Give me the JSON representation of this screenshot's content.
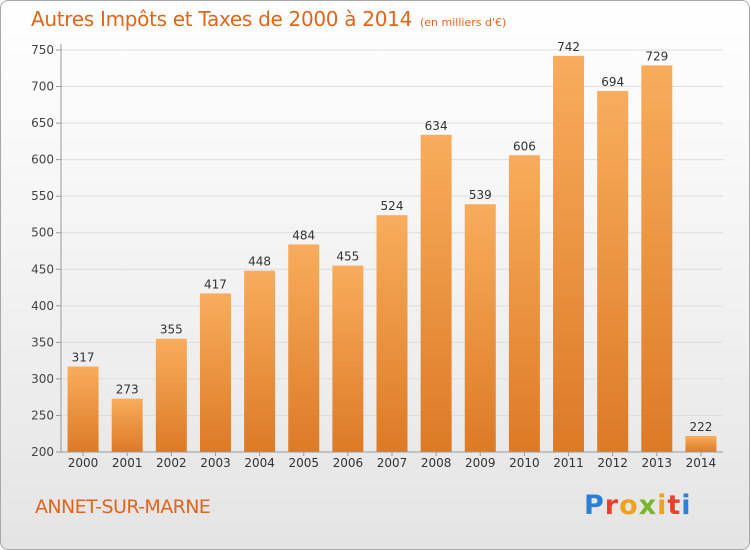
{
  "header": {
    "title": "Autres Impôts et Taxes de 2000 à 2014",
    "unit": "(en milliers d'€)"
  },
  "footer": {
    "commune": "ANNET-SUR-MARNE",
    "brand_letters": [
      "P",
      "r",
      "o",
      "x",
      "i",
      "t",
      "i"
    ],
    "brand_colors": [
      "#2b7fd4",
      "#e8422e",
      "#f0a11e",
      "#7bb52c",
      "#f0a11e",
      "#e8422e",
      "#2b7fd4"
    ]
  },
  "colors": {
    "bar_light": "#f8ad5c",
    "bar_dark": "#dd7a26",
    "grid": "#dddddd",
    "axis": "#999999",
    "accent": "#e0651b"
  },
  "chart_data": {
    "type": "bar",
    "title": "Autres Impôts et Taxes de 2000 à 2014",
    "unit": "(en milliers d'€)",
    "categories": [
      "2000",
      "2001",
      "2002",
      "2003",
      "2004",
      "2005",
      "2006",
      "2007",
      "2008",
      "2009",
      "2010",
      "2011",
      "2012",
      "2013",
      "2014"
    ],
    "values": [
      317,
      273,
      355,
      417,
      448,
      484,
      455,
      524,
      634,
      539,
      606,
      742,
      694,
      729,
      222
    ],
    "ylim": [
      200,
      750
    ],
    "yticks": [
      200,
      250,
      300,
      350,
      400,
      450,
      500,
      550,
      600,
      650,
      700,
      750
    ],
    "grid": true,
    "legend": "none"
  }
}
